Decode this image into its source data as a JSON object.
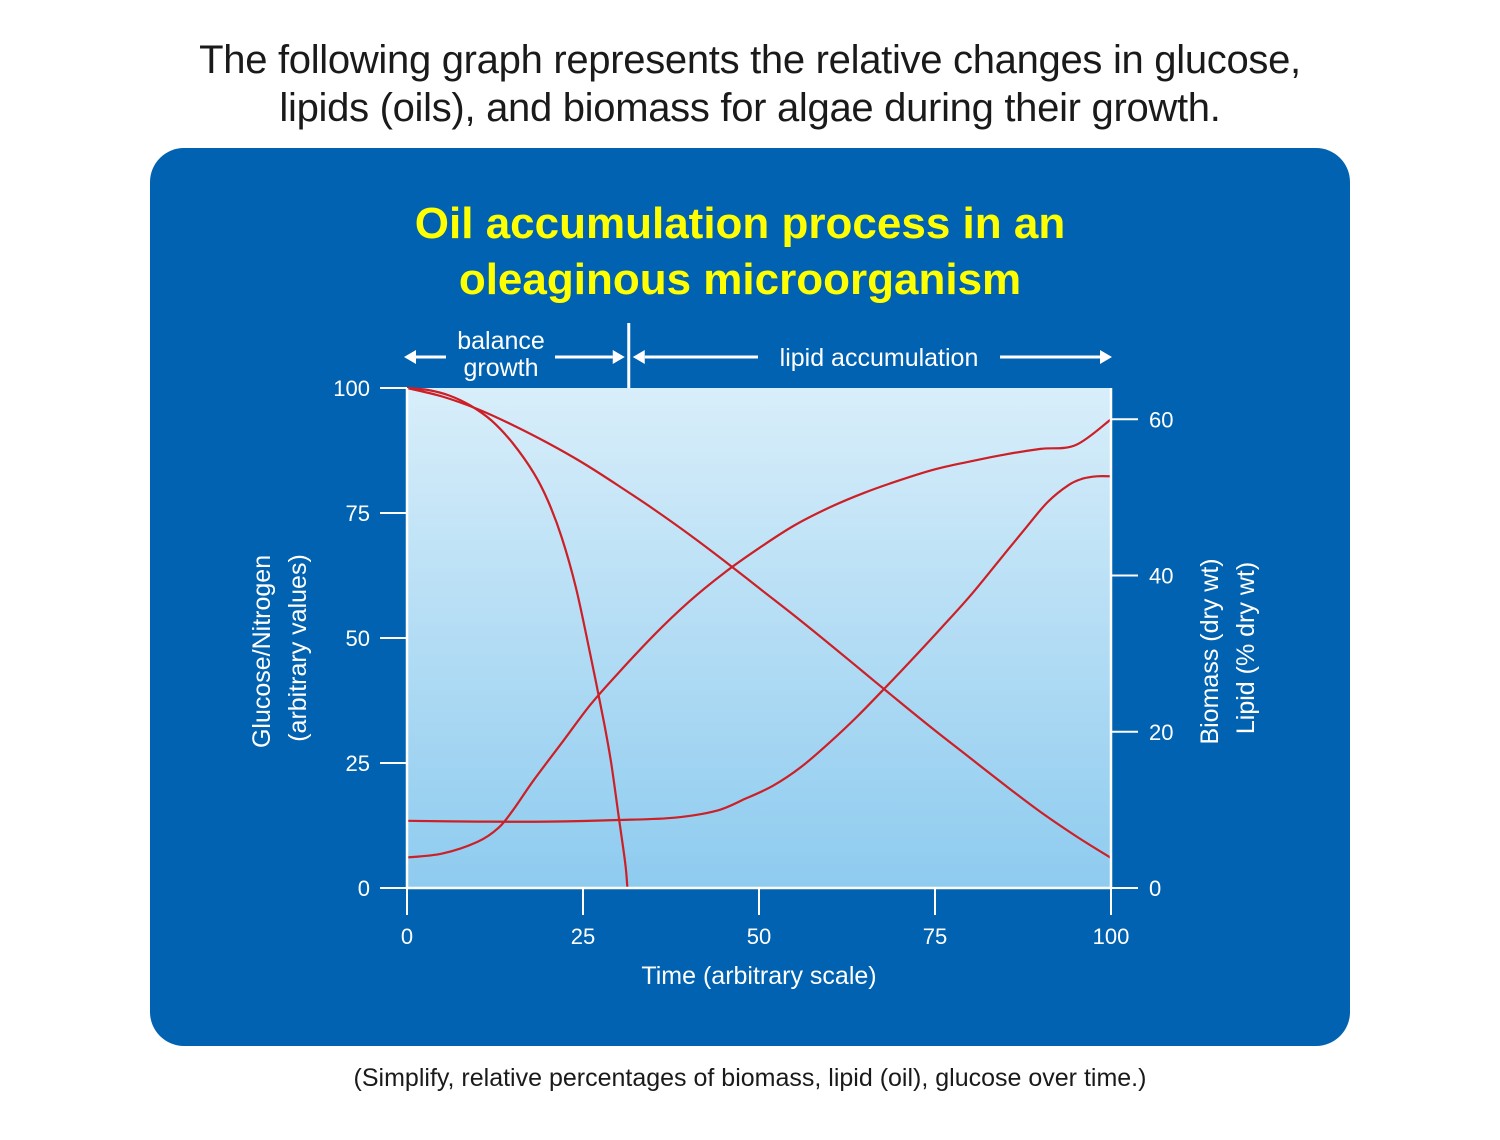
{
  "intro": {
    "line1": "The following graph represents the relative changes in glucose,",
    "line2": "lipids (oils), and biomass for algae during their growth."
  },
  "footnote": "(Simplify, relative percentages of biomass, lipid (oil), glucose over time.)",
  "colors": {
    "panel": "#0062b1",
    "title": "#ffff00",
    "curve": "#cc1f26",
    "plot_top": "#d8eefa",
    "plot_bottom": "#8ecbef",
    "axis": "#ffffff"
  },
  "chart_data": {
    "type": "line",
    "title_line1": "Oil accumulation process in an",
    "title_line2": "oleaginous microorganism",
    "xlabel": "Time (arbitrary scale)",
    "xlim": [
      0,
      100
    ],
    "xticks": [
      "0",
      "25",
      "50",
      "75",
      "100"
    ],
    "ylabel_left_line1": "Glucose/Nitrogen",
    "ylabel_left_line2": "(arbitrary values)",
    "ylim_left": [
      0,
      100
    ],
    "yticks_left": [
      "0",
      "25",
      "50",
      "75",
      "100"
    ],
    "ylabel_right_line1": "Biomass (dry wt)",
    "ylabel_right_line2": "Lipid (% dry wt)",
    "ylim_right": [
      0,
      64
    ],
    "yticks_right": [
      "0",
      "20",
      "40",
      "60"
    ],
    "grid": false,
    "phases": {
      "phase1_line1": "balance",
      "phase1_line2": "growth",
      "phase2": "lipid accumulation",
      "boundary_x": 31.5
    },
    "series": [
      {
        "axis": "left",
        "points": [
          [
            0,
            100
          ],
          [
            3,
            99.6
          ],
          [
            6,
            98.5
          ],
          [
            9,
            96.5
          ],
          [
            12,
            93.5
          ],
          [
            15,
            89
          ],
          [
            18,
            83
          ],
          [
            20,
            77.5
          ],
          [
            22,
            70
          ],
          [
            24,
            60
          ],
          [
            26,
            47
          ],
          [
            28,
            33
          ],
          [
            29,
            25
          ],
          [
            30,
            15
          ],
          [
            31,
            5
          ],
          [
            31.3,
            0
          ]
        ]
      },
      {
        "axis": "left",
        "points": [
          [
            0,
            100
          ],
          [
            5,
            98.3
          ],
          [
            10,
            95.8
          ],
          [
            15,
            92.6
          ],
          [
            20,
            89
          ],
          [
            25,
            85
          ],
          [
            30,
            80.5
          ],
          [
            35,
            75.8
          ],
          [
            40,
            70.8
          ],
          [
            45,
            65.5
          ],
          [
            50,
            60
          ],
          [
            55,
            54.5
          ],
          [
            60,
            48.8
          ],
          [
            65,
            43
          ],
          [
            70,
            37.2
          ],
          [
            75,
            31.5
          ],
          [
            80,
            26
          ],
          [
            85,
            20.5
          ],
          [
            90,
            15.2
          ],
          [
            95,
            10.4
          ],
          [
            100,
            6
          ]
        ]
      },
      {
        "axis": "right",
        "points": [
          [
            0,
            3.9
          ],
          [
            5,
            4.4
          ],
          [
            10,
            5.9
          ],
          [
            13,
            7.7
          ],
          [
            15,
            9.9
          ],
          [
            18,
            13.8
          ],
          [
            22,
            18.6
          ],
          [
            26,
            23.4
          ],
          [
            30,
            27.5
          ],
          [
            35,
            32.3
          ],
          [
            40,
            36.6
          ],
          [
            45,
            40.3
          ],
          [
            50,
            43.5
          ],
          [
            55,
            46.4
          ],
          [
            60,
            48.7
          ],
          [
            65,
            50.6
          ],
          [
            70,
            52.2
          ],
          [
            75,
            53.6
          ],
          [
            80,
            54.6
          ],
          [
            85,
            55.5
          ],
          [
            90,
            56.2
          ],
          [
            95,
            56.7
          ],
          [
            100,
            60.0
          ]
        ]
      },
      {
        "axis": "right",
        "points": [
          [
            0,
            8.6
          ],
          [
            10,
            8.5
          ],
          [
            20,
            8.5
          ],
          [
            30,
            8.7
          ],
          [
            38,
            9.0
          ],
          [
            44,
            9.9
          ],
          [
            48,
            11.4
          ],
          [
            52,
            13.1
          ],
          [
            56,
            15.5
          ],
          [
            60,
            18.6
          ],
          [
            64,
            22
          ],
          [
            68,
            25.7
          ],
          [
            72,
            29.5
          ],
          [
            76,
            33.4
          ],
          [
            80,
            37.4
          ],
          [
            84,
            41.8
          ],
          [
            88,
            46.2
          ],
          [
            91,
            49.4
          ],
          [
            94,
            51.6
          ],
          [
            96,
            52.4
          ],
          [
            98,
            52.7
          ],
          [
            100,
            52.7
          ]
        ]
      }
    ]
  }
}
